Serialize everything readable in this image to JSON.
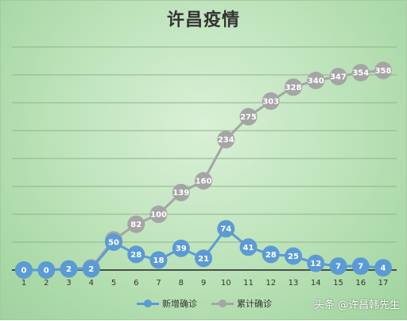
{
  "chart_data": {
    "type": "line",
    "title": "许昌疫情",
    "xlabel": "",
    "ylabel": "",
    "x": [
      1,
      2,
      3,
      4,
      5,
      6,
      7,
      8,
      9,
      10,
      11,
      12,
      13,
      14,
      15,
      16,
      17
    ],
    "ylim": [
      0,
      400
    ],
    "grid": true,
    "legend_position": "bottom",
    "series": [
      {
        "name": "新增确诊",
        "color": "#5b9bd5",
        "values": [
          0,
          0,
          2,
          2,
          50,
          28,
          18,
          39,
          21,
          74,
          41,
          28,
          25,
          12,
          7,
          7,
          4
        ]
      },
      {
        "name": "累计确诊",
        "color": "#a5a5a5",
        "values": [
          0,
          0,
          2,
          4,
          54,
          82,
          100,
          139,
          160,
          234,
          275,
          303,
          328,
          340,
          347,
          354,
          358
        ]
      }
    ]
  },
  "watermark": "头条 @许昌韩先生"
}
